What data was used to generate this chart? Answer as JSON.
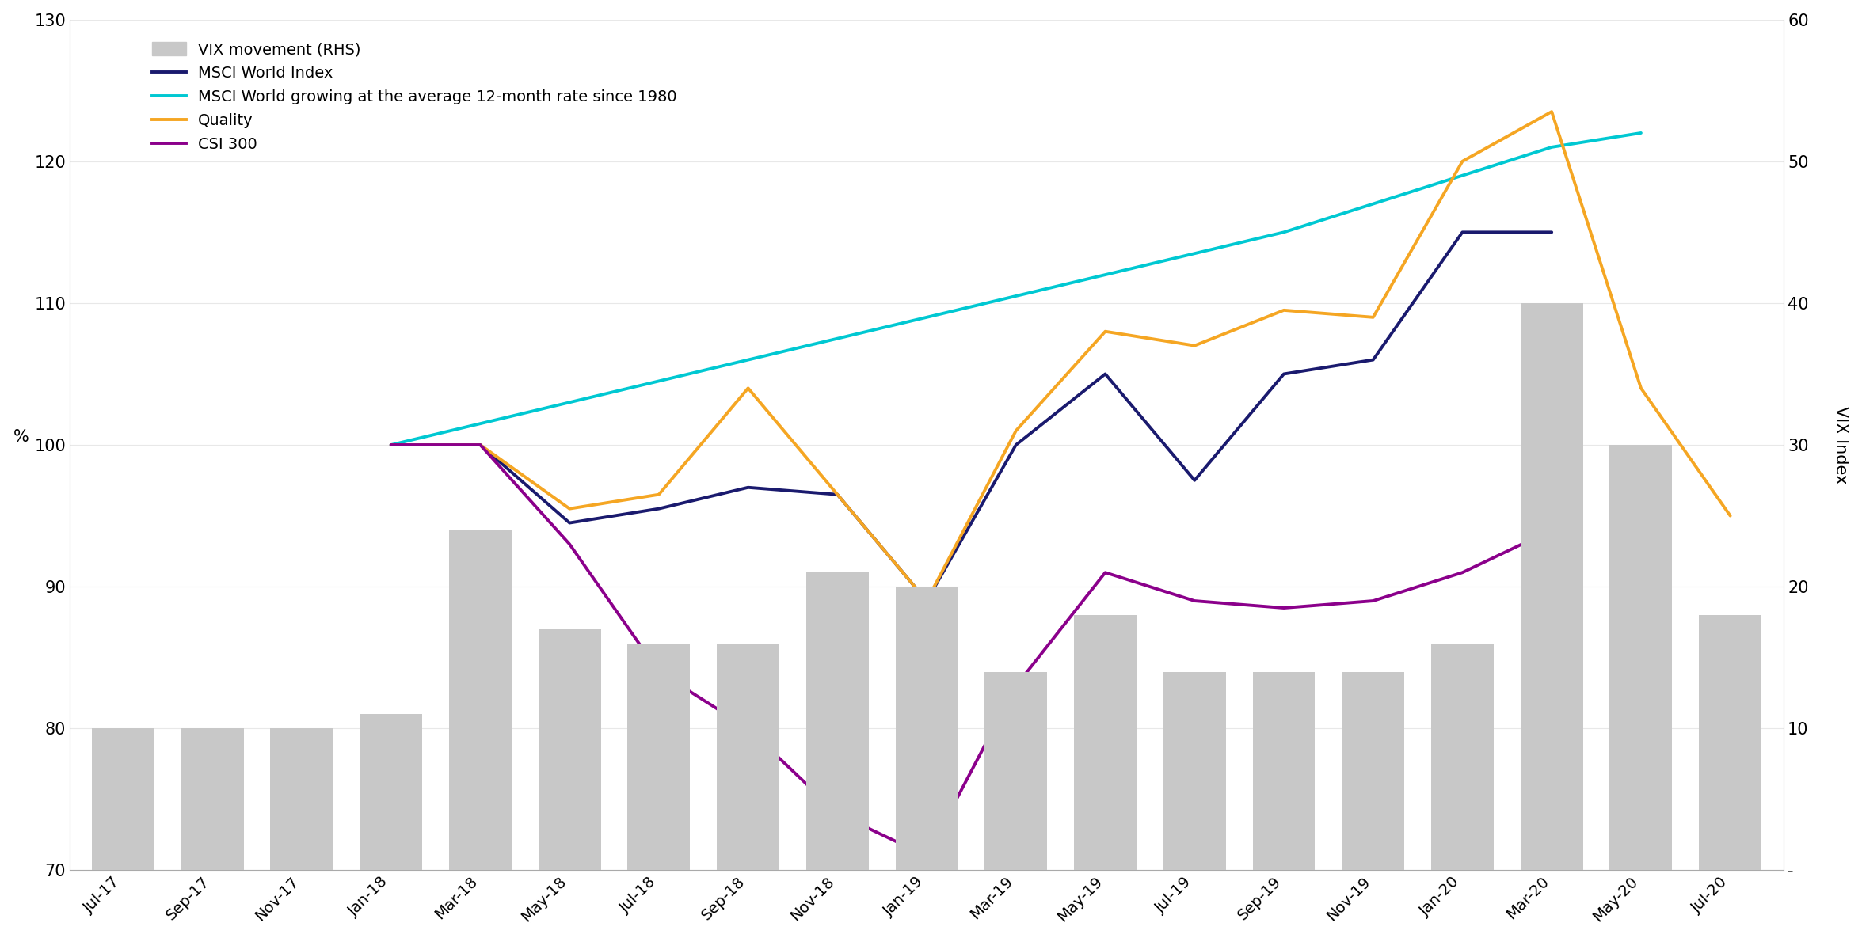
{
  "x_labels": [
    "Jul-17",
    "Sep-17",
    "Nov-17",
    "Jan-18",
    "Mar-18",
    "May-18",
    "Jul-18",
    "Sep-18",
    "Nov-18",
    "Jan-19",
    "Mar-19",
    "May-19",
    "Jul-19",
    "Sep-19",
    "Nov-19",
    "Jan-20",
    "Mar-20",
    "May-20",
    "Jul-20"
  ],
  "ylim_left": [
    70,
    130
  ],
  "ylim_right": [
    0,
    60
  ],
  "ylabel_left": "%",
  "ylabel_right": "VIX Index",
  "vix": [
    10,
    10,
    10,
    11,
    24,
    17,
    16,
    16,
    21,
    20,
    14,
    18,
    14,
    14,
    14,
    16,
    40,
    30,
    18
  ],
  "msci_world_x": [
    3,
    4,
    5,
    6,
    7,
    8,
    9,
    10,
    11,
    12,
    13,
    14,
    15,
    16
  ],
  "msci_world_y": [
    100,
    100,
    94.5,
    95.5,
    97,
    96.5,
    89,
    100,
    105,
    97.5,
    105,
    106,
    115,
    115
  ],
  "msci_trend_x": [
    3,
    4,
    5,
    6,
    7,
    8,
    9,
    10,
    11,
    12,
    13,
    14,
    15,
    16,
    17
  ],
  "msci_trend_y": [
    100,
    101.5,
    103,
    104.5,
    106,
    107.5,
    109,
    110.5,
    112,
    113.5,
    115,
    117,
    119,
    121,
    122
  ],
  "quality_x": [
    3,
    4,
    5,
    6,
    7,
    8,
    9,
    10,
    11,
    12,
    13,
    14,
    15,
    16,
    17,
    18
  ],
  "quality_y": [
    100,
    100,
    95.5,
    96.5,
    104,
    96.5,
    89,
    101,
    108,
    107,
    109.5,
    109,
    120,
    123.5,
    104,
    95
  ],
  "csi300_x": [
    3,
    4,
    5,
    6,
    7,
    8,
    9,
    10,
    11,
    12,
    13,
    14,
    15,
    16
  ],
  "csi300_y": [
    100,
    100,
    93,
    84,
    80,
    74,
    71,
    83,
    91,
    89,
    88.5,
    89,
    91,
    94
  ],
  "bar_color": "#c8c8c8",
  "msci_world_color": "#1a1a6e",
  "msci_trend_color": "#00c8d2",
  "quality_color": "#f5a623",
  "csi300_color": "#8b008b",
  "background_color": "#ffffff",
  "legend_items": [
    "VIX movement (RHS)",
    "MSCI World Index",
    "MSCI World growing at the average 12-month rate since 1980",
    "Quality",
    "CSI 300"
  ],
  "yticks_left": [
    70,
    80,
    90,
    100,
    110,
    120,
    130
  ],
  "yticks_right": [
    0,
    10,
    20,
    30,
    40,
    50,
    60
  ],
  "ytick_right_labels": [
    "-",
    "10",
    "20",
    "30",
    "40",
    "50",
    "60"
  ]
}
